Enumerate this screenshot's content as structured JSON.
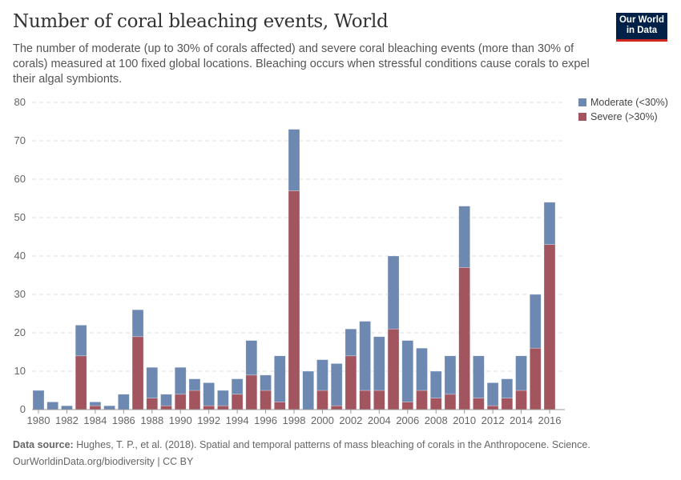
{
  "header": {
    "title": "Number of coral bleaching events, World",
    "subtitle": "The number of moderate (up to 30% of corals affected) and severe coral bleaching events (more than 30% of corals) measured at 100 fixed global locations. Bleaching occurs when stressful conditions cause corals to expel their algal symbionts.",
    "logo": "Our World in Data"
  },
  "footer": {
    "source_label": "Data source:",
    "source_text": " Hughes, T. P., et al. (2018). Spatial and temporal patterns of mass bleaching of corals in the Anthropocene. Science.",
    "url": "OurWorldinData.org/biodiversity | CC BY"
  },
  "chart_data": {
    "type": "bar",
    "stacked": true,
    "title": "Number of coral bleaching events, World",
    "xlabel": "",
    "ylabel": "",
    "ylim": [
      0,
      80
    ],
    "yticks": [
      0,
      10,
      20,
      30,
      40,
      50,
      60,
      70,
      80
    ],
    "xtick_labels": [
      "1980",
      "1982",
      "1984",
      "1986",
      "1988",
      "1990",
      "1992",
      "1994",
      "1996",
      "1998",
      "2000",
      "2002",
      "2004",
      "2006",
      "2008",
      "2010",
      "2012",
      "2014",
      "2016"
    ],
    "grid": true,
    "legend_placement": "top-right",
    "categories": [
      1980,
      1981,
      1982,
      1983,
      1984,
      1985,
      1986,
      1987,
      1988,
      1989,
      1990,
      1991,
      1992,
      1993,
      1994,
      1995,
      1996,
      1997,
      1998,
      1999,
      2000,
      2001,
      2002,
      2003,
      2004,
      2005,
      2006,
      2007,
      2008,
      2009,
      2010,
      2011,
      2012,
      2013,
      2014,
      2015,
      2016
    ],
    "series": [
      {
        "name": "Severe (>30%)",
        "color": "#a2555f",
        "values": [
          0,
          0,
          0,
          14,
          1,
          0,
          0,
          19,
          3,
          1,
          4,
          5,
          1,
          1,
          4,
          9,
          5,
          2,
          57,
          0,
          5,
          1,
          14,
          5,
          5,
          21,
          2,
          5,
          3,
          4,
          37,
          3,
          1,
          3,
          5,
          16,
          43
        ]
      },
      {
        "name": "Moderate (<30%)",
        "color": "#6d88b1",
        "values": [
          5,
          2,
          1,
          8,
          1,
          1,
          4,
          7,
          8,
          3,
          7,
          3,
          6,
          4,
          4,
          9,
          4,
          12,
          16,
          10,
          8,
          11,
          7,
          18,
          14,
          19,
          16,
          11,
          7,
          10,
          16,
          11,
          6,
          5,
          9,
          14,
          11
        ]
      }
    ],
    "legend": [
      "Moderate (<30%)",
      "Severe (>30%)"
    ]
  }
}
